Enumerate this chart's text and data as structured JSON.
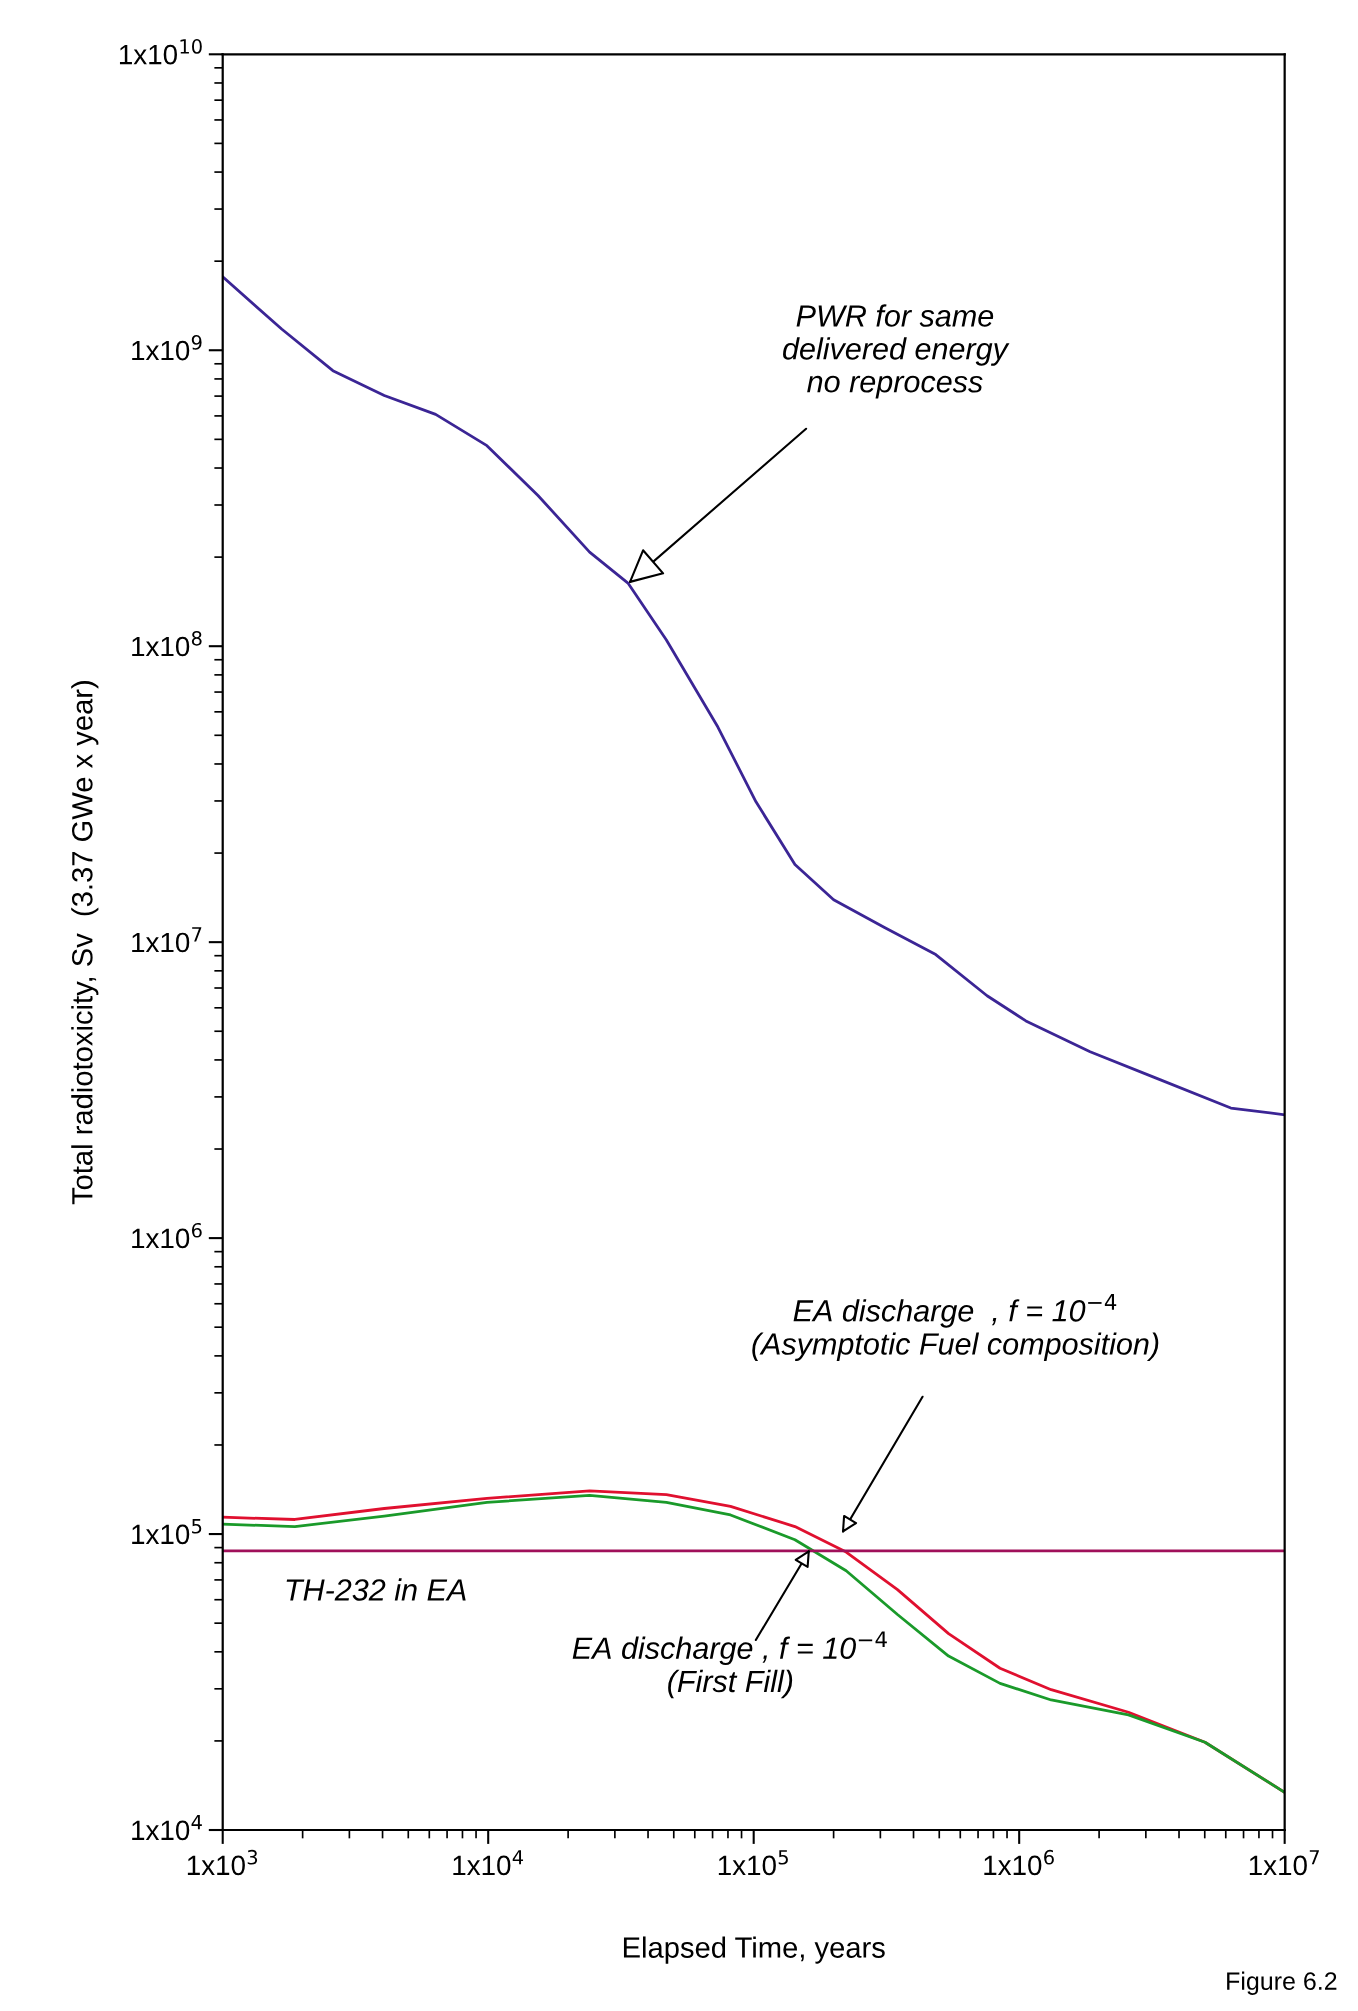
{
  "chart_data": {
    "type": "line",
    "xlabel": "Elapsed Time, years",
    "ylabel": "Total radiotoxicity, Sv  (3.37 GWe x year)",
    "log": "xy",
    "xlim": [
      1000,
      10000000
    ],
    "ylim": [
      10000,
      10000000000
    ],
    "xticks": [
      {
        "value": 1000,
        "label": "1x10$^{3}$"
      },
      {
        "value": 10000,
        "label": "1x10$^{4}$"
      },
      {
        "value": 100000,
        "label": "1x10$^{5}$"
      },
      {
        "value": 1000000,
        "label": "1x10$^{6}$"
      },
      {
        "value": 10000000,
        "label": "1x10$^{7}$"
      }
    ],
    "yticks": [
      {
        "value": 10000,
        "label": "1x10$^{4}$"
      },
      {
        "value": 100000,
        "label": "1x10$^{5}$"
      },
      {
        "value": 1000000,
        "label": "1x10$^{6}$"
      },
      {
        "value": 10000000,
        "label": "1x10$^{7}$"
      },
      {
        "value": 100000000,
        "label": "1x10$^{8}$"
      },
      {
        "value": 1000000000,
        "label": "1x10$^{9}$"
      },
      {
        "value": 10000000000,
        "label": "1x10$^{10}$"
      }
    ],
    "grid": false,
    "series": [
      {
        "color": "#3b2595",
        "x": [
          1000,
          1667,
          2600,
          4060,
          6340,
          9890,
          15400,
          24100,
          33700,
          46900,
          73300,
          102000,
          143000,
          200000,
          311000,
          485000,
          757000,
          1060000,
          1850000,
          3210000,
          6270000,
          10000000
        ],
        "values": [
          1770000000,
          1180000000,
          853000000,
          703000000,
          607000000,
          476000000,
          323000000,
          208000000,
          163000000,
          105000000,
          53300000,
          29800000,
          18300000,
          13900000,
          11200000,
          9080000,
          6590000,
          5420000,
          4260000,
          3500000,
          2750000,
          2610000
        ]
      },
      {
        "color": "#e0102f",
        "x": [
          1000,
          1870,
          4060,
          9890,
          24100,
          46900,
          81800,
          143000,
          223000,
          348000,
          542000,
          847000,
          1320000,
          2580000,
          5010000,
          10000000
        ],
        "values": [
          114000,
          112000,
          122000,
          132000,
          140000,
          136000,
          124000,
          106000,
          86900,
          64900,
          46100,
          35200,
          29800,
          25000,
          19800,
          13400
        ]
      },
      {
        "color": "#1a9a2a",
        "x": [
          1000,
          1870,
          4060,
          9890,
          24100,
          46900,
          81800,
          143000,
          223000,
          348000,
          542000,
          847000,
          1320000,
          2580000,
          5010000,
          10000000
        ],
        "values": [
          108000,
          106000,
          115000,
          128000,
          135000,
          128000,
          116000,
          95700,
          75200,
          53500,
          38700,
          31300,
          27500,
          24500,
          19800,
          13400
        ]
      },
      {
        "color": "#a0105a",
        "x": [
          1000,
          10000000
        ],
        "values": [
          87700,
          87700
        ]
      }
    ],
    "annotations": [
      {
        "text": "PWR for same\ndelivered energy\nno reprocess",
        "x": 33700,
        "y": 163000000
      },
      "EA discharge  , f = 10$^{−4}$\n(Asymptotic Fuel composition)",
      "EA discharge , f = 10$^{−4}$\n(First Fill)",
      {
        "text": "TH-232 in EA",
        "x": 1700,
        "y": 87700
      },
      "Figure 6.2"
    ]
  }
}
